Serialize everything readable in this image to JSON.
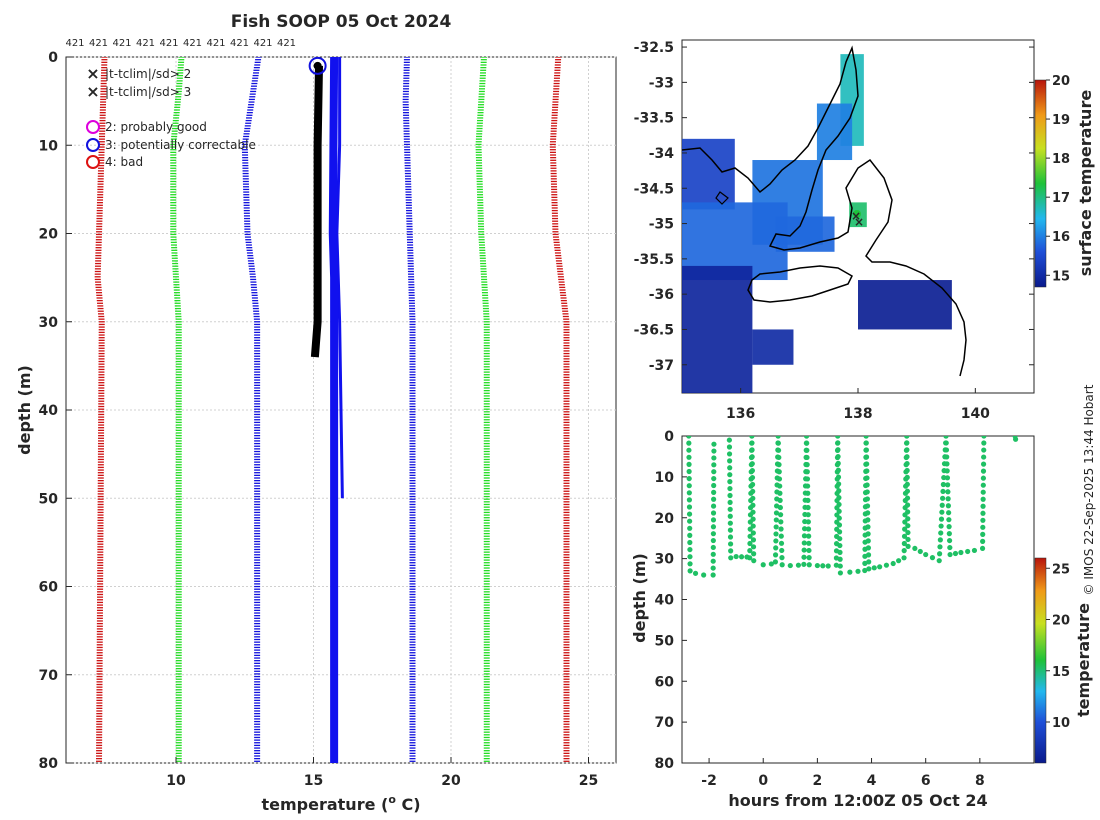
{
  "chart_data": [
    {
      "type": "line",
      "title": "Fish SOOP 05 Oct 2024",
      "xlabel": "temperature (",
      "xlabel_sup": "o",
      "xlabel_end": " C)",
      "ylabel": "depth (m)",
      "xlim": [
        6,
        26
      ],
      "ylim": [
        80,
        0
      ],
      "xticks": [
        10,
        15,
        20,
        25
      ],
      "yticks": [
        0,
        10,
        20,
        30,
        40,
        50,
        60,
        70,
        80
      ],
      "top_labels": [
        "421",
        "421",
        "421",
        "421",
        "421",
        "421",
        "421",
        "421",
        "421",
        "421"
      ],
      "legend": [
        {
          "label": "|t-tclim|/sd> 2",
          "marker": "x",
          "color": "#22dd22"
        },
        {
          "label": "|t-tclim|/sd> 3",
          "marker": "x",
          "color": "#dd1111"
        },
        {
          "label": "2: probably good",
          "marker": "o",
          "color": "#dd00dd"
        },
        {
          "label": "3: potentially correctable",
          "marker": "o",
          "color": "#1111dd"
        },
        {
          "label": "4: bad",
          "marker": "o",
          "color": "#dd1111"
        }
      ],
      "series": [
        {
          "name": "clim-3sd",
          "color": "#cc1111",
          "style": "dotted",
          "depth": [
            0,
            10,
            20,
            25,
            30,
            80
          ],
          "temp": [
            7.4,
            7.3,
            7.2,
            7.15,
            7.3,
            7.2
          ]
        },
        {
          "name": "clim-2sd",
          "color": "#22dd22",
          "style": "dotted",
          "depth": [
            0,
            4,
            10,
            20,
            25,
            30,
            80
          ],
          "temp": [
            10.2,
            10.1,
            9.9,
            9.9,
            10.0,
            10.1,
            10.1
          ]
        },
        {
          "name": "clim-mean-low",
          "color": "#1111dd",
          "style": "dotted",
          "depth": [
            0,
            10,
            20,
            25,
            30,
            80
          ],
          "temp": [
            13.0,
            12.5,
            12.6,
            12.8,
            12.95,
            12.95
          ]
        },
        {
          "name": "clim-mean-high",
          "color": "#1111dd",
          "style": "dotted",
          "depth": [
            0,
            5,
            10,
            20,
            25,
            30,
            80
          ],
          "temp": [
            18.4,
            18.35,
            18.4,
            18.5,
            18.55,
            18.6,
            18.6
          ]
        },
        {
          "name": "clim+2sd",
          "color": "#22dd22",
          "style": "dotted",
          "depth": [
            0,
            10,
            20,
            25,
            30,
            80
          ],
          "temp": [
            21.2,
            21.0,
            21.1,
            21.2,
            21.3,
            21.3
          ]
        },
        {
          "name": "clim+3sd",
          "color": "#cc1111",
          "style": "dotted",
          "depth": [
            0,
            10,
            20,
            25,
            30,
            80
          ],
          "temp": [
            23.9,
            23.7,
            23.8,
            24.0,
            24.2,
            24.2
          ]
        },
        {
          "name": "profile-blue-thin",
          "color": "#1111ee",
          "style": "line",
          "width": 3,
          "depth": [
            0,
            10,
            20,
            30,
            50
          ],
          "temp": [
            15.95,
            15.95,
            15.85,
            15.95,
            16.05
          ]
        },
        {
          "name": "profile-blue-thick",
          "color": "#1111ee",
          "style": "line",
          "width": 8,
          "depth": [
            0,
            20,
            25,
            30,
            80
          ],
          "temp": [
            15.75,
            15.7,
            15.75,
            15.75,
            15.75
          ]
        },
        {
          "name": "profile-black",
          "color": "#000000",
          "style": "line",
          "width": 8,
          "depth": [
            1,
            10,
            20,
            30,
            34
          ],
          "temp": [
            15.2,
            15.15,
            15.15,
            15.15,
            15.05
          ]
        }
      ],
      "markers": [
        {
          "temp": 15.15,
          "depth": 1,
          "color": "#1111dd"
        }
      ]
    },
    {
      "type": "heatmap",
      "colorbar_label": "surface temperature",
      "colorbar_range": [
        14.7,
        20
      ],
      "colorbar_ticks": [
        15,
        16,
        17,
        18,
        19,
        20
      ],
      "xlim": [
        135,
        141
      ],
      "ylim": [
        -37.4,
        -32.4
      ],
      "xticks": [
        136,
        138,
        140
      ],
      "yticks": [
        -32.5,
        -33,
        -33.5,
        -34,
        -34.5,
        -35,
        -35.5,
        -36,
        -36.5,
        -37
      ],
      "patches": [
        {
          "region": "Spencer Gulf upper",
          "value": 16.7,
          "lon": [
            137.7,
            138.1
          ],
          "lat": [
            -33.9,
            -32.6
          ]
        },
        {
          "region": "Spencer Gulf mid",
          "value": 16.0,
          "lon": [
            137.3,
            137.9
          ],
          "lat": [
            -34.1,
            -33.3
          ]
        },
        {
          "region": "Spencer Gulf lower",
          "value": 15.9,
          "lon": [
            136.2,
            137.4
          ],
          "lat": [
            -35.3,
            -34.1
          ]
        },
        {
          "region": "Great Australian Bight",
          "value": 15.4,
          "lon": [
            135.0,
            135.9
          ],
          "lat": [
            -34.8,
            -33.8
          ]
        },
        {
          "region": "shelf west",
          "value": 15.8,
          "lon": [
            135.0,
            136.8
          ],
          "lat": [
            -35.8,
            -34.7
          ]
        },
        {
          "region": "Investigator Strait",
          "value": 15.8,
          "lon": [
            136.6,
            137.6
          ],
          "lat": [
            -35.4,
            -34.9
          ]
        },
        {
          "region": "Gulf St Vincent",
          "value": 17.1,
          "lon": [
            137.85,
            138.15
          ],
          "lat": [
            -35.05,
            -34.7
          ]
        },
        {
          "region": "west offshore",
          "value": 14.9,
          "lon": [
            135.0,
            136.2
          ],
          "lat": [
            -37.4,
            -35.6
          ]
        },
        {
          "region": "Kangaroo Island south",
          "value": 15.0,
          "lon": [
            136.2,
            136.9
          ],
          "lat": [
            -37.0,
            -36.5
          ]
        },
        {
          "region": "south-east shelf",
          "value": 14.8,
          "lon": [
            138.0,
            139.6
          ],
          "lat": [
            -36.5,
            -35.8
          ]
        }
      ]
    },
    {
      "type": "scatter",
      "xlabel": "hours from 12:00Z 05 Oct 24",
      "ylabel": "depth (m)",
      "colorbar_label": "temperature",
      "colorbar_range": [
        6,
        26
      ],
      "colorbar_ticks": [
        10,
        15,
        20,
        25
      ],
      "xlim": [
        -3,
        10
      ],
      "ylim": [
        80,
        0
      ],
      "xticks": [
        -2,
        0,
        2,
        4,
        6,
        8
      ],
      "yticks": [
        0,
        10,
        20,
        30,
        40,
        50,
        60,
        70,
        80
      ],
      "point_value": 15.2,
      "tracks": [
        {
          "x": [
            -2.75,
            -2.7,
            -2.5,
            -2.2,
            -1.85,
            -1.82
          ],
          "y": [
            0,
            33,
            33.6,
            34,
            34,
            2
          ]
        },
        {
          "x": [
            -1.25,
            -1.2,
            -1.0,
            -0.6,
            -0.5,
            -0.42
          ],
          "y": [
            1,
            29.8,
            29.5,
            29.6,
            29.8,
            0
          ]
        },
        {
          "x": [
            -0.42,
            -0.35,
            0.0,
            0.3,
            0.45,
            0.55
          ],
          "y": [
            0,
            30.5,
            31.5,
            31.3,
            30.8,
            0
          ]
        },
        {
          "x": [
            0.55,
            0.7,
            1.0,
            1.3,
            1.5,
            1.6
          ],
          "y": [
            0,
            31.5,
            31.7,
            31.6,
            31.4,
            0
          ]
        },
        {
          "x": [
            1.6,
            1.7,
            2.0,
            2.4,
            2.7,
            2.75
          ],
          "y": [
            0,
            31.5,
            31.7,
            31.8,
            31.6,
            0
          ]
        },
        {
          "x": [
            2.75,
            2.85,
            3.2,
            3.5,
            3.75,
            3.8
          ],
          "y": [
            0,
            33.5,
            33.3,
            33.1,
            32.9,
            0
          ]
        },
        {
          "x": [
            3.8,
            3.9,
            4.3,
            4.8,
            5.2,
            5.3
          ],
          "y": [
            0,
            32.5,
            32.0,
            31.2,
            29.8,
            0
          ]
        },
        {
          "x": [
            5.3,
            5.35,
            5.6,
            6.0,
            6.5,
            6.75
          ],
          "y": [
            0,
            27,
            27.5,
            29,
            30.5,
            0
          ]
        },
        {
          "x": [
            6.75,
            6.9,
            7.3,
            7.8,
            8.1,
            8.15
          ],
          "y": [
            0,
            29,
            28.5,
            28,
            27.5,
            0
          ]
        },
        {
          "x": [
            9.3,
            9.32
          ],
          "y": [
            0,
            0.8
          ]
        }
      ]
    }
  ],
  "footer": {
    "credit": "© IMOS 22-Sep-2025 13:44 Hobart"
  }
}
